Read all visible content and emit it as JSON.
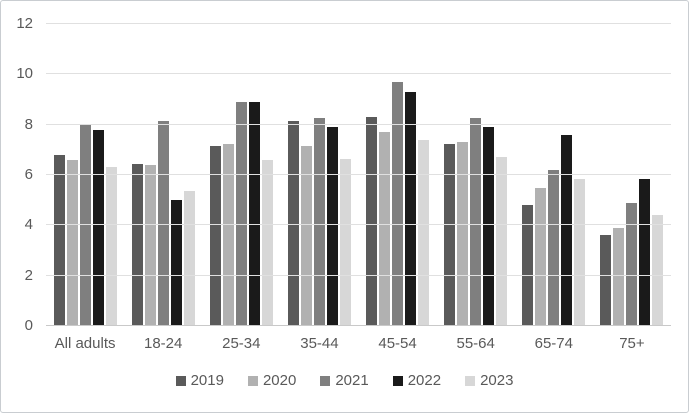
{
  "figure": {
    "background": "#ffffff",
    "border_color": "#c9cdd1"
  },
  "chart_data": {
    "type": "bar",
    "title": "",
    "xlabel": "",
    "ylabel": "",
    "categories": [
      "All adults",
      "18-24",
      "25-34",
      "35-44",
      "45-54",
      "55-64",
      "65-74",
      "75+"
    ],
    "series": [
      {
        "name": "2019",
        "color": "#5a5a5a",
        "values": [
          6.8,
          6.45,
          7.15,
          8.15,
          8.3,
          7.25,
          4.8,
          3.6
        ]
      },
      {
        "name": "2020",
        "color": "#b1b1b1",
        "values": [
          6.6,
          6.4,
          7.25,
          7.15,
          7.7,
          7.3,
          5.5,
          3.9
        ]
      },
      {
        "name": "2021",
        "color": "#7f7f7f",
        "values": [
          8.0,
          8.15,
          8.9,
          8.25,
          9.7,
          8.25,
          6.2,
          4.9
        ]
      },
      {
        "name": "2022",
        "color": "#1a1a1a",
        "values": [
          7.8,
          5.0,
          8.9,
          7.9,
          9.3,
          7.9,
          7.6,
          5.85
        ]
      },
      {
        "name": "2023",
        "color": "#d7d7d7",
        "values": [
          6.3,
          5.35,
          6.6,
          6.65,
          7.4,
          6.7,
          5.85,
          4.4
        ]
      }
    ],
    "ylim": [
      0,
      12
    ],
    "yticks": [
      0,
      2,
      4,
      6,
      8,
      10,
      12
    ],
    "grid": true,
    "gridline_color": "#e0e0e0",
    "axis_line_color": "#c9c9c9",
    "tick_label_color": "#595959",
    "legend": {
      "position": "bottom",
      "entries": [
        "2019",
        "2020",
        "2021",
        "2022",
        "2023"
      ]
    }
  }
}
